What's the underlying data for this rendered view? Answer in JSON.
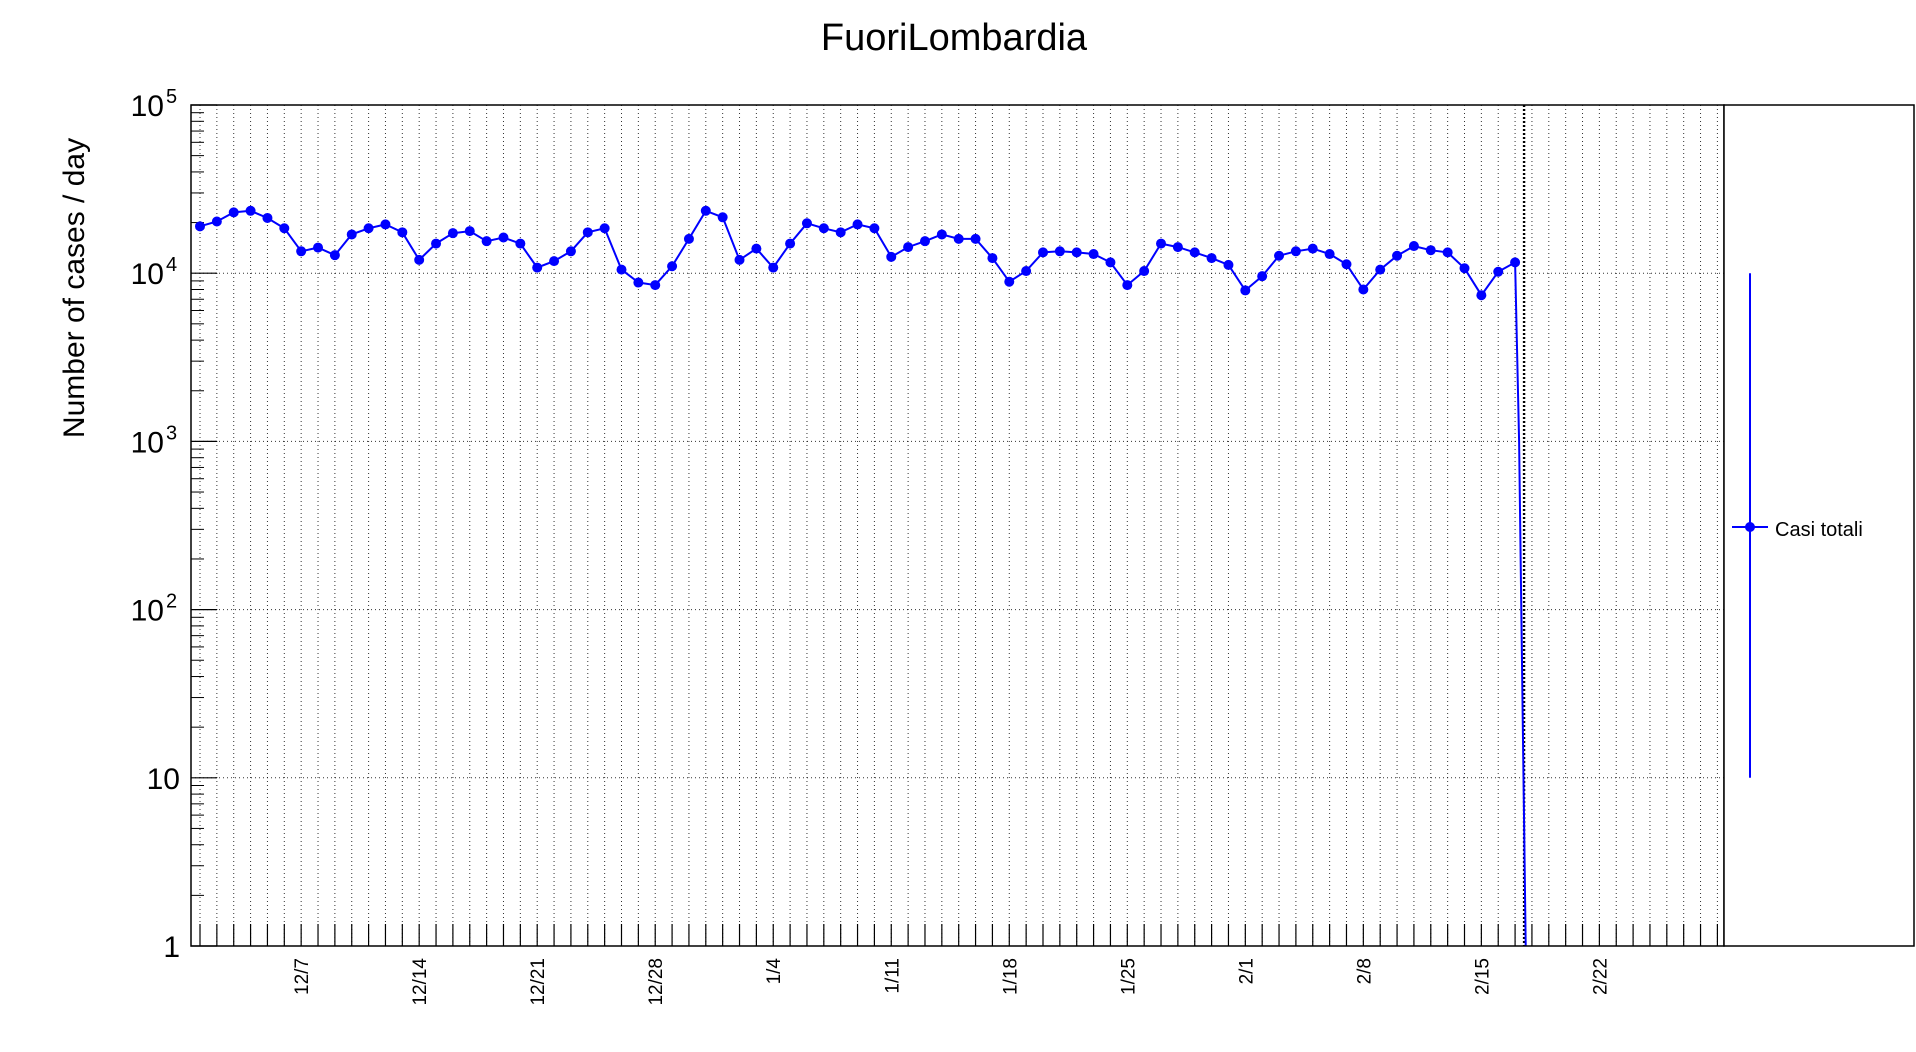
{
  "chart_data": {
    "type": "line",
    "title": "FuoriLombardia",
    "ylabel": "Number of cases / day",
    "xlabel": "",
    "y_scale": "log",
    "ylim": [
      1,
      100000
    ],
    "y_ticks": [
      {
        "value": 1,
        "base": "1",
        "exp": ""
      },
      {
        "value": 10,
        "base": "10",
        "exp": ""
      },
      {
        "value": 100,
        "base": "10",
        "exp": "2"
      },
      {
        "value": 1000,
        "base": "10",
        "exp": "3"
      },
      {
        "value": 10000,
        "base": "10",
        "exp": "4"
      },
      {
        "value": 100000,
        "base": "10",
        "exp": "5"
      }
    ],
    "x_start": "12/1",
    "x_end": "3/4",
    "x_ticks": [
      {
        "date": "12/7",
        "label": "12/7"
      },
      {
        "date": "12/14",
        "label": "12/14"
      },
      {
        "date": "12/21",
        "label": "12/21"
      },
      {
        "date": "12/28",
        "label": "12/28"
      },
      {
        "date": "1/4",
        "label": "1/4"
      },
      {
        "date": "1/11",
        "label": "1/11"
      },
      {
        "date": "1/18",
        "label": "1/18"
      },
      {
        "date": "1/25",
        "label": "1/25"
      },
      {
        "date": "2/1",
        "label": "2/1"
      },
      {
        "date": "2/8",
        "label": "2/8"
      },
      {
        "date": "2/15",
        "label": "2/15"
      },
      {
        "date": "2/22",
        "label": "2/22"
      }
    ],
    "grid": true,
    "marker_line_date": "2/17",
    "legend_position": "right",
    "series": [
      {
        "name": "Casi totali",
        "color": "#0000ff",
        "marker": "circle",
        "points": [
          {
            "x": "12/1",
            "y": 19000
          },
          {
            "x": "12/2",
            "y": 20300
          },
          {
            "x": "12/3",
            "y": 23000
          },
          {
            "x": "12/4",
            "y": 23500
          },
          {
            "x": "12/5",
            "y": 21300
          },
          {
            "x": "12/6",
            "y": 18500
          },
          {
            "x": "12/7",
            "y": 13500
          },
          {
            "x": "12/8",
            "y": 14200
          },
          {
            "x": "12/9",
            "y": 12800
          },
          {
            "x": "12/10",
            "y": 17000
          },
          {
            "x": "12/11",
            "y": 18500
          },
          {
            "x": "12/12",
            "y": 19500
          },
          {
            "x": "12/13",
            "y": 17500
          },
          {
            "x": "12/14",
            "y": 12000
          },
          {
            "x": "12/15",
            "y": 15000
          },
          {
            "x": "12/16",
            "y": 17300
          },
          {
            "x": "12/17",
            "y": 17800
          },
          {
            "x": "12/18",
            "y": 15500
          },
          {
            "x": "12/19",
            "y": 16300
          },
          {
            "x": "12/20",
            "y": 15000
          },
          {
            "x": "12/21",
            "y": 10800
          },
          {
            "x": "12/22",
            "y": 11800
          },
          {
            "x": "12/23",
            "y": 13500
          },
          {
            "x": "12/24",
            "y": 17500
          },
          {
            "x": "12/25",
            "y": 18500
          },
          {
            "x": "12/26",
            "y": 10500
          },
          {
            "x": "12/27",
            "y": 8800
          },
          {
            "x": "12/28",
            "y": 8500
          },
          {
            "x": "12/29",
            "y": 11000
          },
          {
            "x": "12/30",
            "y": 16000
          },
          {
            "x": "12/31",
            "y": 23500
          },
          {
            "x": "1/1",
            "y": 21500
          },
          {
            "x": "1/2",
            "y": 12000
          },
          {
            "x": "1/3",
            "y": 14000
          },
          {
            "x": "1/4",
            "y": 10800
          },
          {
            "x": "1/5",
            "y": 15000
          },
          {
            "x": "1/6",
            "y": 19800
          },
          {
            "x": "1/7",
            "y": 18500
          },
          {
            "x": "1/8",
            "y": 17500
          },
          {
            "x": "1/9",
            "y": 19500
          },
          {
            "x": "1/10",
            "y": 18500
          },
          {
            "x": "1/11",
            "y": 12500
          },
          {
            "x": "1/12",
            "y": 14300
          },
          {
            "x": "1/13",
            "y": 15500
          },
          {
            "x": "1/14",
            "y": 17000
          },
          {
            "x": "1/15",
            "y": 16000
          },
          {
            "x": "1/16",
            "y": 16000
          },
          {
            "x": "1/17",
            "y": 12300
          },
          {
            "x": "1/18",
            "y": 8900
          },
          {
            "x": "1/19",
            "y": 10300
          },
          {
            "x": "1/20",
            "y": 13300
          },
          {
            "x": "1/21",
            "y": 13500
          },
          {
            "x": "1/22",
            "y": 13300
          },
          {
            "x": "1/23",
            "y": 13000
          },
          {
            "x": "1/24",
            "y": 11600
          },
          {
            "x": "1/25",
            "y": 8500
          },
          {
            "x": "1/26",
            "y": 10300
          },
          {
            "x": "1/27",
            "y": 15000
          },
          {
            "x": "1/28",
            "y": 14300
          },
          {
            "x": "1/29",
            "y": 13300
          },
          {
            "x": "1/30",
            "y": 12300
          },
          {
            "x": "1/31",
            "y": 11200
          },
          {
            "x": "2/1",
            "y": 7900
          },
          {
            "x": "2/2",
            "y": 9600
          },
          {
            "x": "2/3",
            "y": 12700
          },
          {
            "x": "2/4",
            "y": 13500
          },
          {
            "x": "2/5",
            "y": 14000
          },
          {
            "x": "2/6",
            "y": 13000
          },
          {
            "x": "2/7",
            "y": 11300
          },
          {
            "x": "2/8",
            "y": 8000
          },
          {
            "x": "2/9",
            "y": 10500
          },
          {
            "x": "2/10",
            "y": 12700
          },
          {
            "x": "2/11",
            "y": 14500
          },
          {
            "x": "2/12",
            "y": 13700
          },
          {
            "x": "2/13",
            "y": 13300
          },
          {
            "x": "2/14",
            "y": 10700
          },
          {
            "x": "2/15",
            "y": 7400
          },
          {
            "x": "2/16",
            "y": 10200
          },
          {
            "x": "2/17",
            "y": 11600
          }
        ],
        "tail_points": [
          {
            "x": "2/17",
            "y": 1000
          },
          {
            "x": "2/17",
            "y": 100
          },
          {
            "x": "2/17",
            "y": 10
          },
          {
            "x": "2/17",
            "y": 1
          }
        ]
      }
    ],
    "legend_error_bar": [
      10,
      10000
    ]
  },
  "legend": {
    "entry_label": "Casi totali"
  }
}
